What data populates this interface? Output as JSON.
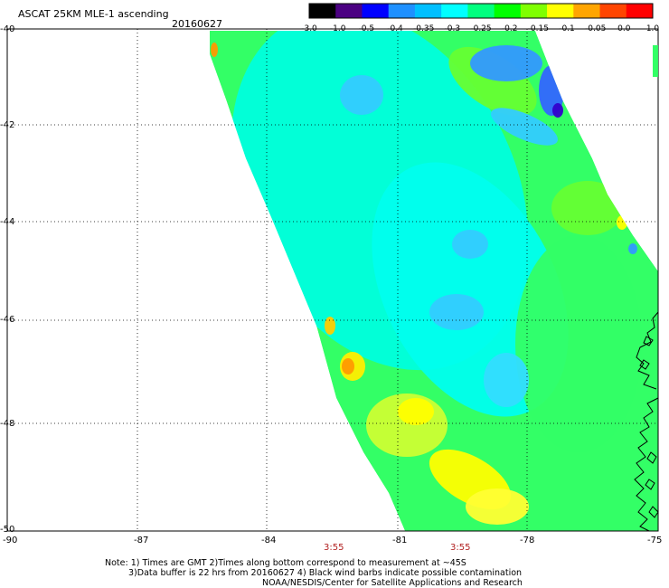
{
  "header": {
    "title": "ASCAT 25KM MLE-1 ascending",
    "date": "20160627"
  },
  "colorbar": {
    "labels": [
      "-3.0",
      "-1.0",
      "-0.5",
      "-0.4",
      "-0.35",
      "-0.3",
      "-0.25",
      "-0.2",
      "-0.15",
      "-0.1",
      "-0.05",
      "0.0",
      "1.0"
    ],
    "colors": [
      "#000000",
      "#4b0082",
      "#0000ff",
      "#1e90ff",
      "#00bfff",
      "#00ffff",
      "#00ff7f",
      "#00ff00",
      "#7fff00",
      "#ffff00",
      "#ffa500",
      "#ff4500",
      "#ff0000"
    ]
  },
  "axes": {
    "lat_labels": [
      "-40",
      "-42",
      "-44",
      "-46",
      "-48",
      "-50"
    ],
    "lon_labels": [
      "-90",
      "-87",
      "-84",
      "-81",
      "-78",
      "-75"
    ]
  },
  "times": [
    "3:55",
    "3:55"
  ],
  "notes": {
    "line1": "Note: 1) Times are GMT 2)Times along bottom correspond to measurement at ~45S",
    "line2": "3)Data buffer is 22 hrs from 20160627 4) Black wind barbs indicate possible contamination",
    "line3": "NOAA/NESDIS/Center for Satellite Applications and Research"
  }
}
